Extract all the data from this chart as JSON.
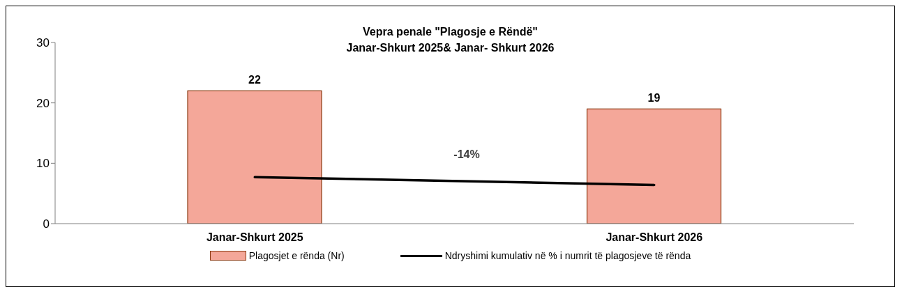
{
  "chart_data": {
    "type": "bar",
    "title": "Vepra penale \"Plagosje e Rëndë\"",
    "subtitle": "Janar-Shkurt 2025& Janar- Shkurt 2026",
    "categories": [
      "Janar-Shkurt 2025",
      "Janar-Shkurt 2026"
    ],
    "series": [
      {
        "name": "Plagosjet e rënda (Nr)",
        "color": "#f4a799",
        "values": [
          22,
          19
        ],
        "value_labels": [
          "22",
          "19"
        ]
      },
      {
        "name": "Ndryshimi kumulativ në % i numrit të plagosjeve të rënda",
        "type": "line",
        "color": "#000000",
        "values": [
          7.7,
          6.4
        ]
      }
    ],
    "annotations": [
      "-14%"
    ],
    "ylim": [
      0,
      30
    ],
    "yticks": [
      0,
      10,
      20,
      30
    ],
    "legend": "bottom",
    "marker": "none",
    "line_style": "solid"
  }
}
